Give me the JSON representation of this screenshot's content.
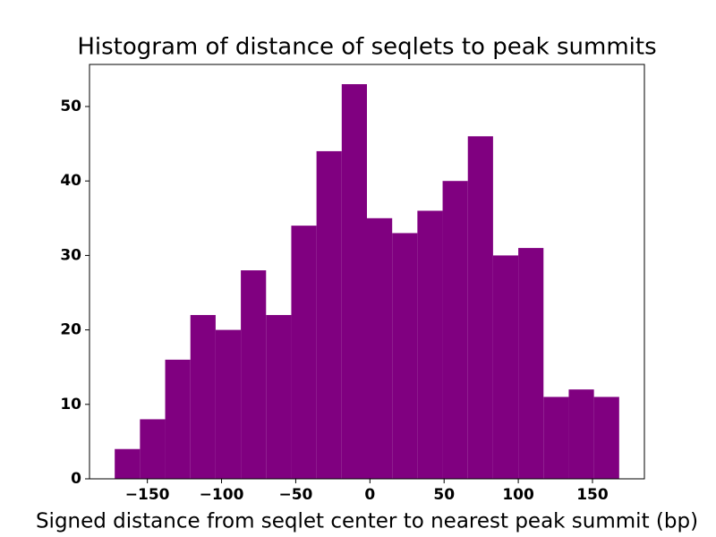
{
  "chart_data": {
    "type": "histogram",
    "title": "Histogram of distance of seqlets to peak summits",
    "xlabel": "Signed distance from seqlet center to nearest peak summit (bp)",
    "bins": [
      -172,
      -155,
      -138,
      -121,
      -104,
      -87,
      -70,
      -53,
      -36,
      -19,
      -2,
      15,
      32,
      49,
      66,
      83,
      100,
      117,
      134,
      151,
      168
    ],
    "counts": [
      4,
      8,
      16,
      22,
      20,
      28,
      22,
      34,
      44,
      53,
      35,
      33,
      36,
      40,
      46,
      30,
      31,
      11,
      12,
      11
    ],
    "color": "#800080",
    "xlim": [
      -189,
      185
    ],
    "ylim": [
      0,
      55.65
    ],
    "xticks": [
      {
        "value": -150,
        "label": "−150"
      },
      {
        "value": -100,
        "label": "−100"
      },
      {
        "value": -50,
        "label": "−50"
      },
      0,
      50,
      100,
      150
    ],
    "yticks": [
      0,
      10,
      20,
      30,
      40,
      50
    ]
  }
}
